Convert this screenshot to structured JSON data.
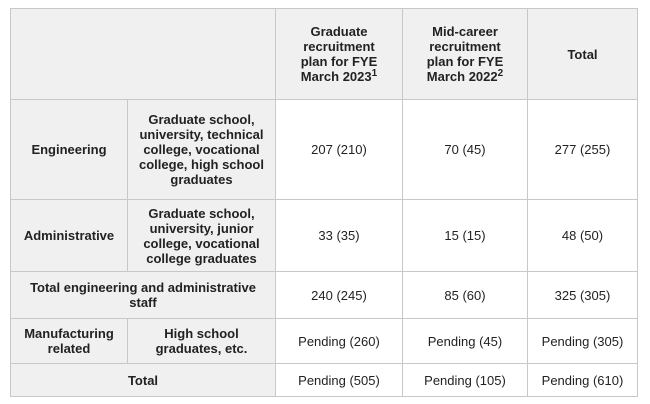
{
  "header": {
    "columns": [
      {
        "text": "Graduate recruitment plan for FYE March 2023",
        "note": "1"
      },
      {
        "text": "Mid-career recruitment plan for FYE March 2022",
        "note": "2"
      },
      {
        "text": "Total"
      }
    ]
  },
  "rows": [
    {
      "category": "Engineering",
      "subcategory": "Graduate school, university, technical college, vocational college, high school graduates",
      "values": [
        "207 (210)",
        "70 (45)",
        "277 (255)"
      ]
    },
    {
      "category": "Administrative",
      "subcategory": "Graduate school, university, junior college, vocational college graduates",
      "values": [
        "33 (35)",
        "15 (15)",
        "48 (50)"
      ]
    },
    {
      "label": "Total engineering and administrative staff",
      "values": [
        "240 (245)",
        "85 (60)",
        "325 (305)"
      ]
    },
    {
      "category": "Manufacturing related",
      "subcategory": "High school graduates, etc.",
      "values": [
        "Pending (260)",
        "Pending (45)",
        "Pending (305)"
      ]
    },
    {
      "label": "Total",
      "values": [
        "Pending (505)",
        "Pending (105)",
        "Pending (610)"
      ]
    }
  ]
}
